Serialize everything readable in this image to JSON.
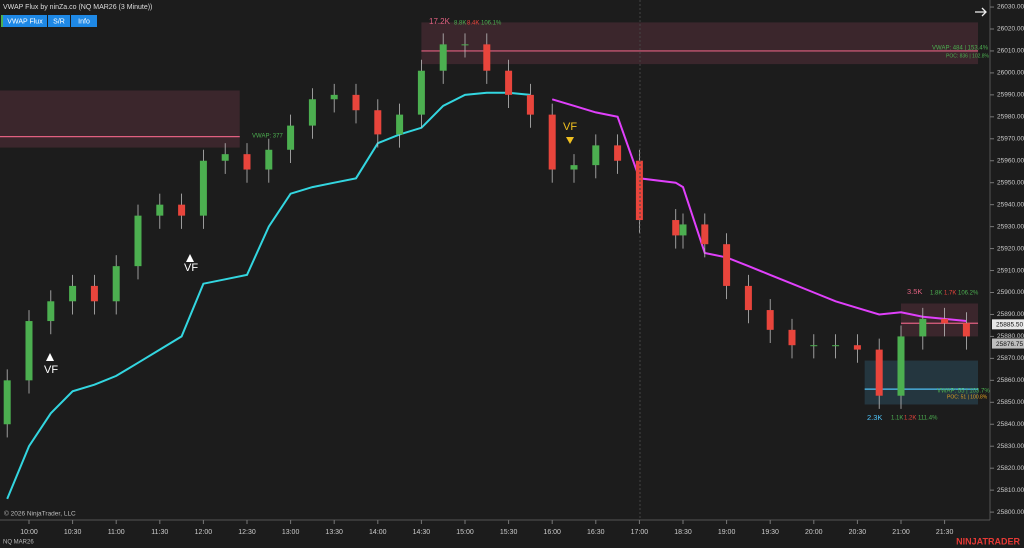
{
  "chart_data": {
    "type": "candlestick",
    "title": "VWAP Flux by ninZa.co (NQ MAR26 (3 Minute))",
    "buttons": [
      "VWAP Flux",
      "S/R",
      "Info"
    ],
    "x": [
      585,
      600,
      615,
      630,
      645,
      660,
      675,
      690,
      705,
      720,
      735,
      750,
      765,
      780,
      795,
      810,
      825,
      840,
      855,
      870,
      885,
      900,
      915,
      930,
      945,
      960,
      975,
      990,
      1005,
      1020,
      1095,
      1110,
      1125,
      1140,
      1155,
      1170,
      1185,
      1200,
      1215,
      1230,
      1245,
      1260,
      1275,
      1290,
      1305
    ],
    "open": [
      25840,
      25860,
      25887,
      25896,
      25903,
      25896,
      25912,
      25935,
      25940,
      25935,
      25960,
      25963,
      25956,
      25965,
      25976,
      25988,
      25990,
      25983,
      25972,
      25981,
      26001,
      26013,
      26013,
      26001,
      25990,
      25981,
      25956,
      25958,
      25967,
      25960,
      25933,
      25926,
      25931,
      25922,
      25903,
      25892,
      25883,
      25876,
      25876,
      25876,
      25874,
      25853,
      25880,
      25888,
      25886
    ],
    "high": [
      25865,
      25892,
      25901,
      25908,
      25908,
      25917,
      25940,
      25945,
      25945,
      25965,
      25968,
      25968,
      25970,
      25981,
      25993,
      25995,
      25995,
      25988,
      25986,
      26006,
      26018,
      26018,
      26018,
      26006,
      25995,
      25986,
      25963,
      25972,
      25972,
      25965,
      25938,
      25936,
      25936,
      25927,
      25908,
      25897,
      25888,
      25881,
      25881,
      25881,
      25879,
      25885,
      25893,
      25893,
      25891
    ],
    "low": [
      25834,
      25854,
      25881,
      25890,
      25890,
      25890,
      25906,
      25929,
      25929,
      25929,
      25954,
      25950,
      25950,
      25959,
      25970,
      25982,
      25977,
      25966,
      25966,
      25975,
      25995,
      26007,
      25995,
      25984,
      25975,
      25950,
      25950,
      25952,
      25954,
      25927,
      25920,
      25920,
      25916,
      25897,
      25886,
      25877,
      25870,
      25870,
      25870,
      25868,
      25847,
      25847,
      25874,
      25880,
      25874
    ],
    "close": [
      25860,
      25887,
      25896,
      25903,
      25896,
      25912,
      25935,
      25940,
      25935,
      25960,
      25963,
      25956,
      25965,
      25976,
      25988,
      25990,
      25983,
      25972,
      25981,
      26001,
      26013,
      26013,
      26001,
      25990,
      25981,
      25956,
      25958,
      25967,
      25960,
      25933,
      25926,
      25931,
      25922,
      25903,
      25892,
      25883,
      25876,
      25876,
      25876,
      25874,
      25853,
      25880,
      25888,
      25886,
      25880
    ],
    "up_color": "#4caf50",
    "down_color": "#e8453c",
    "series": [
      {
        "color": "#33d6e0",
        "values": [
          25806,
          25830,
          25845,
          25855,
          25858,
          25862,
          25868,
          25874,
          25880,
          25904,
          25906,
          25908,
          25930,
          25945,
          25948,
          25950,
          25952,
          25968,
          25972,
          25975,
          25985,
          25990,
          25991,
          25991,
          25990,
          null,
          null,
          null,
          null,
          null,
          null,
          null,
          null,
          null,
          null,
          null,
          null,
          null,
          null,
          null,
          null,
          null,
          null,
          null,
          null
        ]
      },
      {
        "color": "#e040fb",
        "values": [
          null,
          null,
          null,
          null,
          null,
          null,
          null,
          null,
          null,
          null,
          null,
          null,
          null,
          null,
          null,
          null,
          null,
          null,
          null,
          null,
          null,
          null,
          null,
          null,
          null,
          25988,
          25985,
          25982,
          25980,
          25952,
          25950,
          25948,
          25918,
          25916,
          25912,
          25908,
          25904,
          25900,
          25896,
          25893,
          25890,
          25891,
          25889,
          25888,
          25887
        ]
      }
    ],
    "zones": [
      {
        "from": 870,
        "to": 1313,
        "high": 26023,
        "low": 26004,
        "level": 26010,
        "color": "#e06080"
      },
      {
        "from": 580,
        "to": 745,
        "high": 25992,
        "low": 25966,
        "level": 25971,
        "color": "#e06080"
      },
      {
        "from": 1235,
        "to": 1313,
        "high": 25869,
        "low": 25849,
        "level": 25856,
        "color": "#4fc3f7"
      },
      {
        "from": 1260,
        "to": 1313,
        "high": 25895,
        "low": 25880,
        "level": 25886,
        "color": "#e06080"
      }
    ],
    "ylim": [
      25796.4,
      26033.2
    ],
    "yticks": [
      {
        "value": 25800,
        "label": "25800.00"
      },
      {
        "value": 25810,
        "label": "25810.00"
      },
      {
        "value": 25820,
        "label": "25820.00"
      },
      {
        "value": 25830,
        "label": "25830.00"
      },
      {
        "value": 25840,
        "label": "25840.00"
      },
      {
        "value": 25850,
        "label": "25850.00"
      },
      {
        "value": 25860,
        "label": "25860.00"
      },
      {
        "value": 25870,
        "label": "25870.00"
      },
      {
        "value": 25880,
        "label": "25880.00"
      },
      {
        "value": 25890,
        "label": "25890.00"
      },
      {
        "value": 25900,
        "label": "25900.00"
      },
      {
        "value": 25910,
        "label": "25910.00"
      },
      {
        "value": 25920,
        "label": "25920.00"
      },
      {
        "value": 25930,
        "label": "25930.00"
      },
      {
        "value": 25940,
        "label": "25940.00"
      },
      {
        "value": 25950,
        "label": "25950.00"
      },
      {
        "value": 25960,
        "label": "25960.00"
      },
      {
        "value": 25970,
        "label": "25970.00"
      },
      {
        "value": 25980,
        "label": "25980.00"
      },
      {
        "value": 25990,
        "label": "25990.00"
      },
      {
        "value": 26000,
        "label": "26000.00"
      },
      {
        "value": 26010,
        "label": "26010.00"
      },
      {
        "value": 26020,
        "label": "26020.00"
      },
      {
        "value": 26030,
        "label": "26030.00"
      }
    ],
    "xticks": [
      {
        "value": 600,
        "label": "10:00"
      },
      {
        "value": 630,
        "label": "10:30"
      },
      {
        "value": 660,
        "label": "11:00"
      },
      {
        "value": 690,
        "label": "11:30"
      },
      {
        "value": 720,
        "label": "12:00"
      },
      {
        "value": 750,
        "label": "12:30"
      },
      {
        "value": 780,
        "label": "13:00"
      },
      {
        "value": 810,
        "label": "13:30"
      },
      {
        "value": 840,
        "label": "14:00"
      },
      {
        "value": 870,
        "label": "14:30"
      },
      {
        "value": 900,
        "label": "15:00"
      },
      {
        "value": 930,
        "label": "15:30"
      },
      {
        "value": 960,
        "label": "16:00"
      },
      {
        "value": 990,
        "label": "16:30"
      },
      {
        "value": 1020,
        "label": "17:00"
      },
      {
        "value": 1110,
        "label": "18:30"
      },
      {
        "value": 1140,
        "label": "19:00"
      },
      {
        "value": 1170,
        "label": "19:30"
      },
      {
        "value": 1200,
        "label": "20:00"
      },
      {
        "value": 1230,
        "label": "20:30"
      },
      {
        "value": 1260,
        "label": "21:00"
      },
      {
        "value": 1290,
        "label": "21:30"
      }
    ],
    "price_markers": [
      {
        "value": 25885.5,
        "label": "25885.50",
        "color": "#e8e8e8"
      },
      {
        "value": 25876.75,
        "label": "25876.75",
        "color": "#bdbdbd"
      }
    ],
    "annotations": [
      "17.2K",
      "8.8K",
      "8.4K",
      "106.1%",
      "VWAP: 484 | 153.4%",
      "POC: 836 | 102.8%",
      "VWAP: 377",
      "3.5K",
      "1.8K",
      "1.7K",
      "106.2%",
      "VWAP: 55 | 103.7%",
      "POC: 51 | 100.8%",
      "2.3K",
      "1.1K",
      "1.2K",
      "111.4%",
      "VF",
      "VF",
      "VF"
    ],
    "copyright": "© 2026 NinjaTrader, LLC",
    "instrument": "NQ MAR26",
    "brand": "NINJATRADER"
  }
}
